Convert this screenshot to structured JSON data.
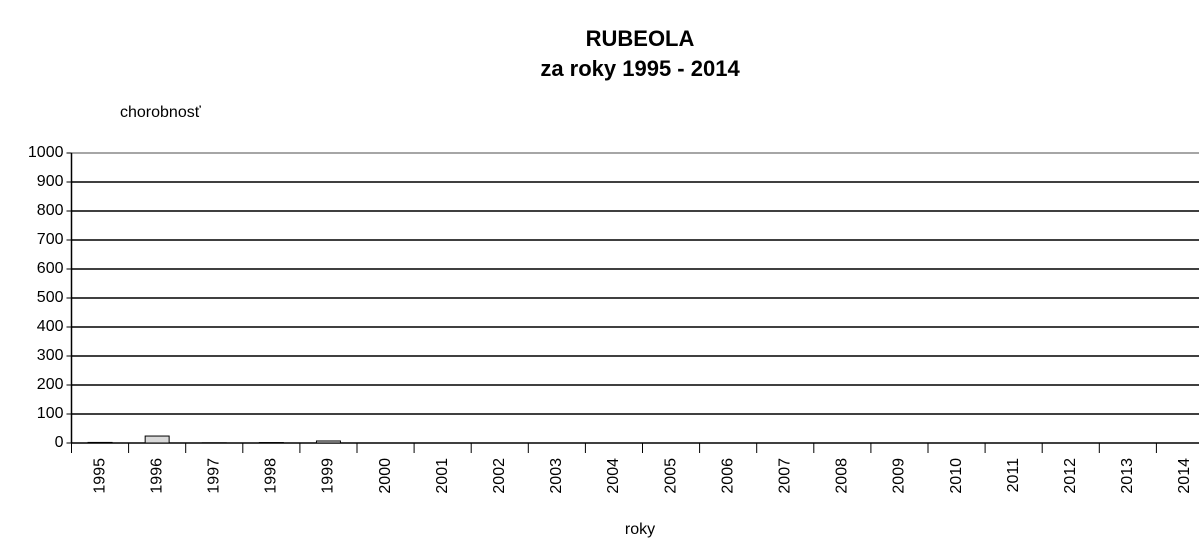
{
  "chart_data": {
    "type": "bar",
    "title": "RUBEOLA",
    "subtitle": "za roky 1995 - 2014",
    "y_label": "chorobnosť",
    "x_label": "roky",
    "categories": [
      "1995",
      "1996",
      "1997",
      "1998",
      "1999",
      "2000",
      "2001",
      "2002",
      "2003",
      "2004",
      "2005",
      "2006",
      "2007",
      "2008",
      "2009",
      "2010",
      "2011",
      "2012",
      "2013",
      "2014"
    ],
    "values": [
      2,
      24,
      0.5,
      1.5,
      7,
      0,
      0,
      0,
      0,
      0,
      0,
      0,
      0,
      0,
      0,
      0,
      0,
      0,
      0,
      0
    ],
    "color": "#d9d9d9",
    "ylim": [
      0,
      1000
    ],
    "yticks": [
      0,
      100,
      200,
      300,
      400,
      500,
      600,
      700,
      800,
      900,
      1000
    ],
    "grid": true
  }
}
